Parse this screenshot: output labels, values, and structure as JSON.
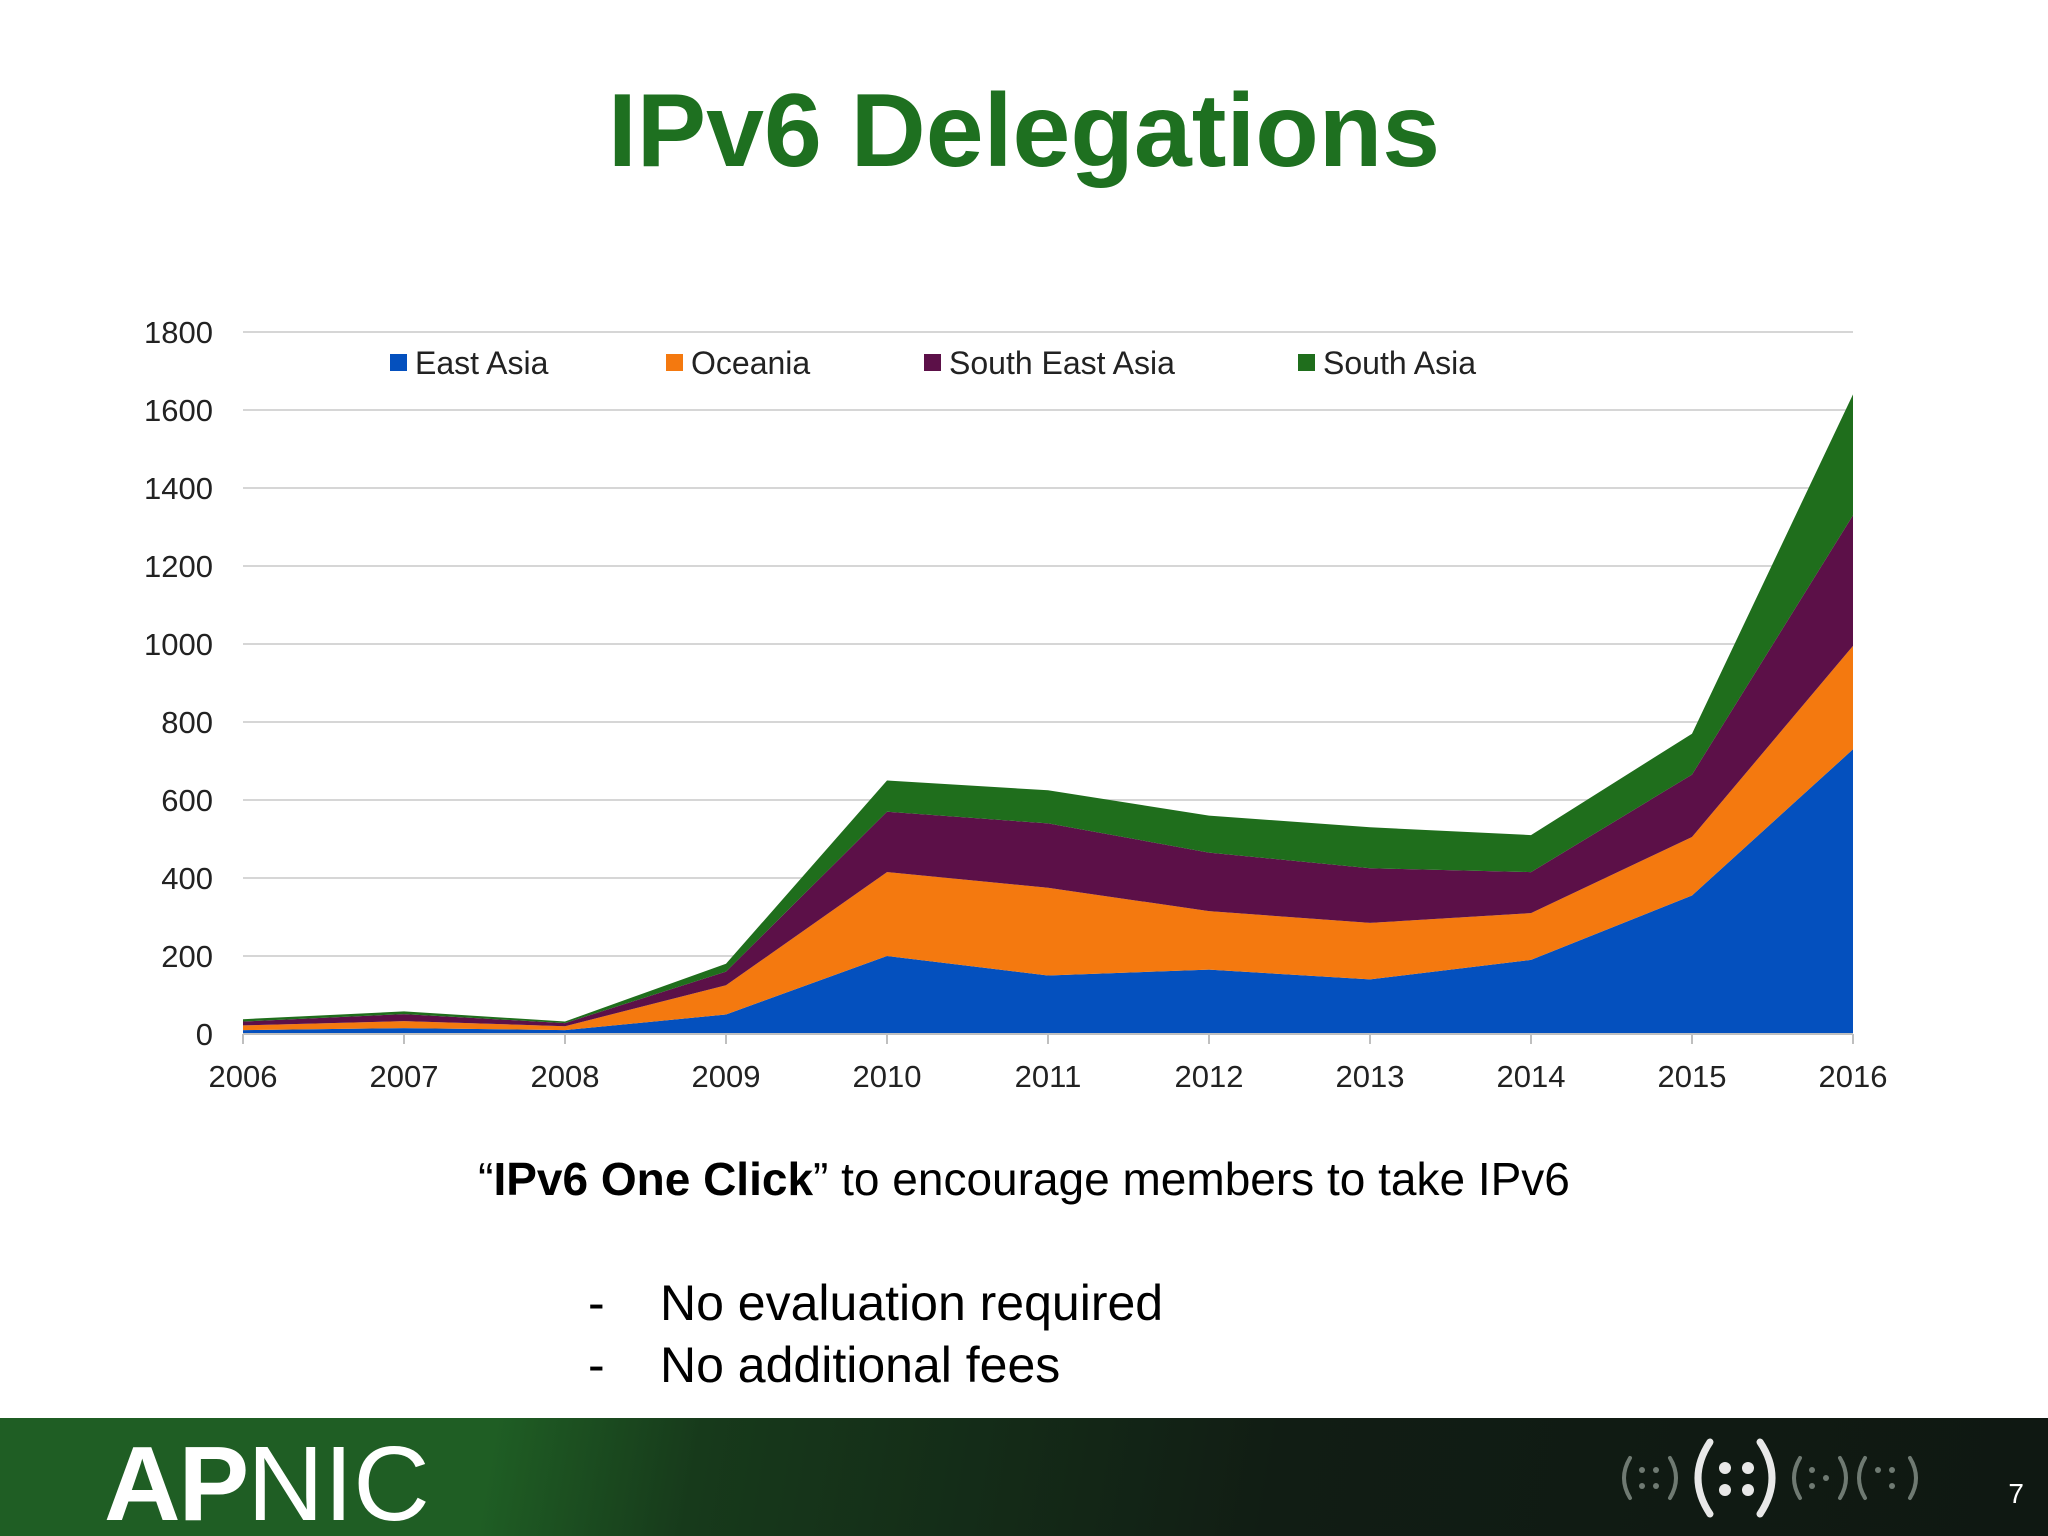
{
  "slide": {
    "title": "IPv6 Delegations",
    "tagline_open_quote": "“",
    "tagline_bold": "IPv6 One Click",
    "tagline_rest": "” to encourage members to take IPv6",
    "bullets": [
      {
        "dash": "-",
        "text": "No evaluation required"
      },
      {
        "dash": "-",
        "text": "No additional fees"
      }
    ],
    "footer": {
      "logo_bold": "AP",
      "logo_thin": "NIC",
      "page_number": "7"
    }
  },
  "chart_data": {
    "type": "area",
    "stacked": true,
    "x": [
      "2006",
      "2007",
      "2008",
      "2009",
      "2010",
      "2011",
      "2012",
      "2013",
      "2014",
      "2015",
      "2016"
    ],
    "series": [
      {
        "name": "East Asia",
        "color": "#0450be",
        "values": [
          10,
          15,
          10,
          50,
          200,
          150,
          165,
          140,
          190,
          355,
          730
        ]
      },
      {
        "name": "Oceania",
        "color": "#f4790f",
        "values": [
          12,
          18,
          10,
          75,
          215,
          225,
          150,
          145,
          120,
          150,
          265
        ]
      },
      {
        "name": "South East Asia",
        "color": "#5c1048",
        "values": [
          10,
          18,
          8,
          35,
          155,
          165,
          150,
          140,
          105,
          160,
          335
        ]
      },
      {
        "name": "South Asia",
        "color": "#1f6e1c",
        "values": [
          6,
          7,
          4,
          20,
          80,
          85,
          95,
          105,
          95,
          105,
          310
        ]
      }
    ],
    "y_ticks": [
      "0",
      "200",
      "400",
      "600",
      "800",
      "1000",
      "1200",
      "1400",
      "1600",
      "1800"
    ],
    "ylim": [
      0,
      1800
    ],
    "grid": true,
    "legend_position": "top"
  }
}
